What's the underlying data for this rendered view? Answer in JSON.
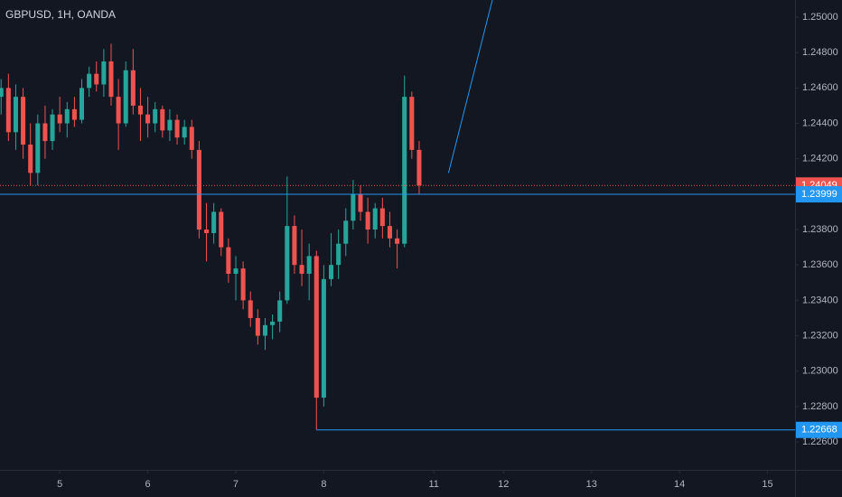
{
  "chart_data": {
    "type": "candlestick",
    "title": "GBPUSD, 1H, OANDA",
    "up_color": "#26a69a",
    "down_color": "#ef5350",
    "background": "#131722",
    "grid": false,
    "x": [
      -16,
      -14,
      -12,
      -10,
      -8,
      -6,
      -4,
      -2,
      0,
      2,
      4,
      6,
      8,
      10,
      12,
      14,
      16,
      18,
      20,
      22,
      24,
      26,
      28,
      30,
      32,
      34,
      36,
      38,
      40,
      42,
      44,
      46,
      48,
      50,
      52,
      54,
      56,
      58,
      60,
      62,
      64,
      66,
      68,
      70,
      72,
      74,
      76,
      78,
      80,
      82,
      84,
      86,
      88,
      90,
      92,
      94,
      96,
      98
    ],
    "open": [
      1.2455,
      1.246,
      1.2435,
      1.2455,
      1.2428,
      1.2412,
      1.244,
      1.243,
      1.2445,
      1.244,
      1.2448,
      1.2442,
      1.246,
      1.2468,
      1.2462,
      1.2475,
      1.2455,
      1.244,
      1.247,
      1.245,
      1.2445,
      1.244,
      1.2448,
      1.2436,
      1.2442,
      1.2432,
      1.2438,
      1.2425,
      1.238,
      1.2378,
      1.239,
      1.237,
      1.2355,
      1.2358,
      1.234,
      1.233,
      1.232,
      1.2326,
      1.2328,
      1.234,
      1.2382,
      1.236,
      1.2355,
      1.2365,
      1.2285,
      1.2352,
      1.236,
      1.2372,
      1.2385,
      1.24,
      1.239,
      1.238,
      1.2392,
      1.2382,
      1.2375,
      1.2372,
      1.2455,
      1.2425
    ],
    "high": [
      1.2465,
      1.2468,
      1.2462,
      1.246,
      1.244,
      1.2445,
      1.245,
      1.2448,
      1.2455,
      1.2452,
      1.2455,
      1.2465,
      1.2472,
      1.2475,
      1.2482,
      1.2485,
      1.2465,
      1.2475,
      1.2482,
      1.246,
      1.2455,
      1.2452,
      1.245,
      1.2448,
      1.2445,
      1.2442,
      1.2442,
      1.243,
      1.2395,
      1.2395,
      1.2392,
      1.2375,
      1.2365,
      1.2362,
      1.2345,
      1.2335,
      1.233,
      1.2332,
      1.2345,
      1.241,
      1.2388,
      1.238,
      1.2372,
      1.2368,
      1.236,
      1.2378,
      1.238,
      1.2392,
      1.2408,
      1.2405,
      1.2398,
      1.2395,
      1.2398,
      1.239,
      1.238,
      1.2467,
      1.2458,
      1.243
    ],
    "low": [
      1.2445,
      1.243,
      1.2425,
      1.242,
      1.2405,
      1.2405,
      1.242,
      1.2425,
      1.2435,
      1.2432,
      1.2438,
      1.244,
      1.2455,
      1.2458,
      1.2455,
      1.245,
      1.2425,
      1.2438,
      1.2445,
      1.243,
      1.2432,
      1.2435,
      1.2432,
      1.243,
      1.2428,
      1.2428,
      1.242,
      1.2375,
      1.2362,
      1.2372,
      1.2365,
      1.235,
      1.234,
      1.2335,
      1.2325,
      1.2315,
      1.2312,
      1.2318,
      1.2322,
      1.2338,
      1.2355,
      1.2348,
      1.234,
      1.2267,
      1.228,
      1.2348,
      1.2352,
      1.2365,
      1.238,
      1.2385,
      1.2372,
      1.2375,
      1.2375,
      1.237,
      1.2358,
      1.237,
      1.242,
      1.24
    ],
    "close": [
      1.246,
      1.2435,
      1.2455,
      1.2428,
      1.2412,
      1.244,
      1.243,
      1.2445,
      1.244,
      1.2448,
      1.2442,
      1.246,
      1.2468,
      1.2462,
      1.2475,
      1.2455,
      1.244,
      1.247,
      1.245,
      1.2445,
      1.244,
      1.2448,
      1.2436,
      1.2442,
      1.2432,
      1.2438,
      1.2425,
      1.238,
      1.2378,
      1.239,
      1.237,
      1.2355,
      1.2358,
      1.234,
      1.233,
      1.232,
      1.2326,
      1.2328,
      1.234,
      1.2382,
      1.236,
      1.2355,
      1.2365,
      1.2285,
      1.2352,
      1.236,
      1.2372,
      1.2385,
      1.24,
      1.239,
      1.238,
      1.2392,
      1.2382,
      1.2375,
      1.2372,
      1.2455,
      1.2425,
      1.24049
    ],
    "xlim": [
      -16.3,
      200.5
    ],
    "xticks": [
      {
        "value": 0,
        "label": "5"
      },
      {
        "value": 24,
        "label": "6"
      },
      {
        "value": 48,
        "label": "7"
      },
      {
        "value": 72,
        "label": "8"
      },
      {
        "value": 102,
        "label": "11"
      },
      {
        "value": 121,
        "label": "12"
      },
      {
        "value": 145,
        "label": "13"
      },
      {
        "value": 169,
        "label": "14"
      },
      {
        "value": 193,
        "label": "15"
      }
    ],
    "ylim": [
      1.22442,
      1.25097
    ],
    "yticks": [
      {
        "value": 1.226,
        "label": "1.22600"
      },
      {
        "value": 1.228,
        "label": "1.22800"
      },
      {
        "value": 1.23,
        "label": "1.23000"
      },
      {
        "value": 1.232,
        "label": "1.23200"
      },
      {
        "value": 1.234,
        "label": "1.23400"
      },
      {
        "value": 1.236,
        "label": "1.23600"
      },
      {
        "value": 1.238,
        "label": "1.23800"
      },
      {
        "value": 1.24,
        "label": "1.24000"
      },
      {
        "value": 1.242,
        "label": "1.24200"
      },
      {
        "value": 1.244,
        "label": "1.24400"
      },
      {
        "value": 1.246,
        "label": "1.24600"
      },
      {
        "value": 1.248,
        "label": "1.24800"
      },
      {
        "value": 1.25,
        "label": "1.25000"
      }
    ],
    "hlines": [
      {
        "value": 1.24049,
        "label": "1.24049",
        "color": "#ef5350",
        "style": "dotted",
        "x_start": -16.3
      },
      {
        "value": 1.23999,
        "label": "1.23999",
        "color": "#2196f3",
        "style": "solid",
        "x_start": -16.3
      },
      {
        "value": 1.22668,
        "label": "1.22668",
        "color": "#2196f3",
        "style": "solid",
        "x_start": 70
      }
    ],
    "trendline": {
      "color": "#2196f3",
      "x": [
        106,
        118
      ],
      "y": [
        1.2412,
        1.251
      ]
    }
  }
}
